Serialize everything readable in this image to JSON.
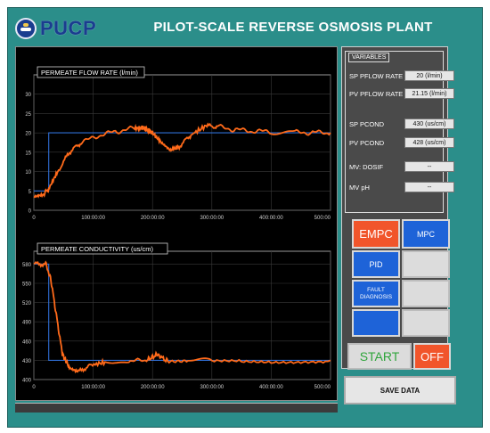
{
  "header": {
    "logo_text": "PUCP",
    "title": "PILOT-SCALE REVERSE OSMOSIS PLANT"
  },
  "chart_data": [
    {
      "type": "line",
      "title": "PERMEATE FLOW RATE (l/min)",
      "xlim": [
        0,
        500
      ],
      "ylim": [
        0,
        35
      ],
      "x_tick_labels": [
        "0",
        "100:00:00",
        "200:00:00",
        "300:00:00",
        "400:00:00",
        "500:00"
      ],
      "y_tick_labels": [
        "0",
        "5",
        "10",
        "15",
        "20",
        "25",
        "30"
      ],
      "series": [
        {
          "color": "#2f6fd6",
          "points": [
            [
              0,
              5
            ],
            [
              25,
              5
            ],
            [
              25,
              20
            ],
            [
              500,
              20
            ]
          ]
        },
        {
          "color": "#ff6a1a",
          "points": [
            [
              0,
              3.5
            ],
            [
              15,
              4
            ],
            [
              25,
              5.5
            ],
            [
              40,
              10
            ],
            [
              60,
              15
            ],
            [
              80,
              17.5
            ],
            [
              110,
              19.3
            ],
            [
              140,
              20.4
            ],
            [
              170,
              21.2
            ],
            [
              185,
              21.3
            ],
            [
              200,
              20
            ],
            [
              215,
              17.5
            ],
            [
              230,
              15.5
            ],
            [
              245,
              16.5
            ],
            [
              265,
              19.5
            ],
            [
              290,
              21.8
            ],
            [
              310,
              21.6
            ],
            [
              340,
              20.8
            ],
            [
              370,
              20.4
            ],
            [
              400,
              20.3
            ],
            [
              440,
              20.1
            ],
            [
              470,
              20.1
            ],
            [
              500,
              20
            ]
          ]
        }
      ]
    },
    {
      "type": "line",
      "title": "PERMEATE CONDUCTIVITY    (us/cm)",
      "xlim": [
        0,
        500
      ],
      "ylim": [
        400,
        600
      ],
      "x_tick_labels": [
        "0",
        "100:00:00",
        "200:00:00",
        "300:00:00",
        "400:00:00",
        "500:00"
      ],
      "y_tick_labels": [
        "400",
        "430",
        "460",
        "490",
        "520",
        "550",
        "580"
      ],
      "series": [
        {
          "color": "#2f6fd6",
          "points": [
            [
              0,
              580
            ],
            [
              25,
              580
            ],
            [
              25,
              430
            ],
            [
              500,
              430
            ]
          ]
        },
        {
          "color": "#ff6a1a",
          "points": [
            [
              0,
              580
            ],
            [
              20,
              580
            ],
            [
              28,
              560
            ],
            [
              38,
              500
            ],
            [
              48,
              440
            ],
            [
              60,
              418
            ],
            [
              75,
              412
            ],
            [
              95,
              422
            ],
            [
              120,
              427
            ],
            [
              160,
              428
            ],
            [
              190,
              430
            ],
            [
              200,
              435
            ],
            [
              210,
              440
            ],
            [
              218,
              432
            ],
            [
              228,
              428
            ],
            [
              260,
              429
            ],
            [
              300,
              430
            ],
            [
              350,
              430
            ],
            [
              400,
              429
            ],
            [
              450,
              429
            ],
            [
              500,
              430
            ]
          ]
        }
      ]
    }
  ],
  "variables": {
    "title": "VARIABLES",
    "items": [
      {
        "label": "SP PFLOW RATE",
        "value": "20 (l/min)"
      },
      {
        "label": "PV PFLOW RATE",
        "value": "21.15 (l/min)"
      },
      {
        "label": "SP PCOND",
        "value": "430 (us/cm)"
      },
      {
        "label": "PV PCOND",
        "value": "428 (us/cm)"
      },
      {
        "label": "MV: DOSIF",
        "value": "--"
      },
      {
        "label": "MV pH",
        "value": "--"
      }
    ]
  },
  "buttons": {
    "empc": "EMPC",
    "mpc": "MPC",
    "pid": "PID",
    "fault_diagnosis": "FAULT DIAGNOSIS",
    "start": "START",
    "off": "OFF",
    "save_data": "SAVE DATA"
  },
  "colors": {
    "background": "#2b8e8a",
    "plot_background": "#000000",
    "setpoint_line": "#2f6fd6",
    "measured_line": "#ff6a1a",
    "button_blue": "#1e63d8",
    "button_orange": "#f1552b",
    "start_text": "#2fa53b"
  }
}
